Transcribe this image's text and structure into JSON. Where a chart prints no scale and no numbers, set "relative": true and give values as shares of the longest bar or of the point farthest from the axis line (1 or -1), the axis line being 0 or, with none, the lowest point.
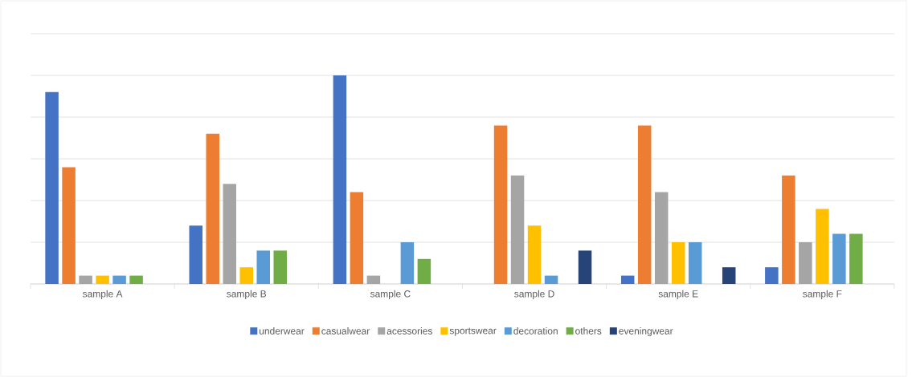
{
  "chart_data": {
    "type": "bar",
    "relative": true,
    "grid": "y",
    "legend": "bottom",
    "categories": [
      "sample A",
      "sample B",
      "sample C",
      "sample D",
      "sample E",
      "sample F"
    ],
    "series": [
      {
        "name": "underwear",
        "color": "#4472c4",
        "values": [
          0.92,
          0.28,
          1,
          null,
          0.04,
          0.08
        ]
      },
      {
        "name": "casualwear",
        "color": "#ed7d31",
        "values": [
          0.56,
          0.72,
          0.44,
          0.76,
          0.76,
          0.52
        ]
      },
      {
        "name": "acessories",
        "color": "#a5a5a5",
        "values": [
          0.04,
          0.48,
          0.04,
          0.52,
          0.44,
          0.2
        ]
      },
      {
        "name": "sportswear",
        "color": "#ffc000",
        "values": [
          0.04,
          0.08,
          null,
          0.28,
          0.2,
          0.36
        ]
      },
      {
        "name": "decoration",
        "color": "#5b9bd5",
        "values": [
          0.04,
          0.16,
          0.2,
          0.04,
          0.2,
          0.24
        ]
      },
      {
        "name": "others",
        "color": "#70ad47",
        "values": [
          0.04,
          0.16,
          0.12,
          null,
          null,
          0.24
        ]
      },
      {
        "name": "eveningwear",
        "color": "#264478",
        "values": [
          null,
          null,
          null,
          0.16,
          0.08,
          null
        ]
      }
    ]
  }
}
